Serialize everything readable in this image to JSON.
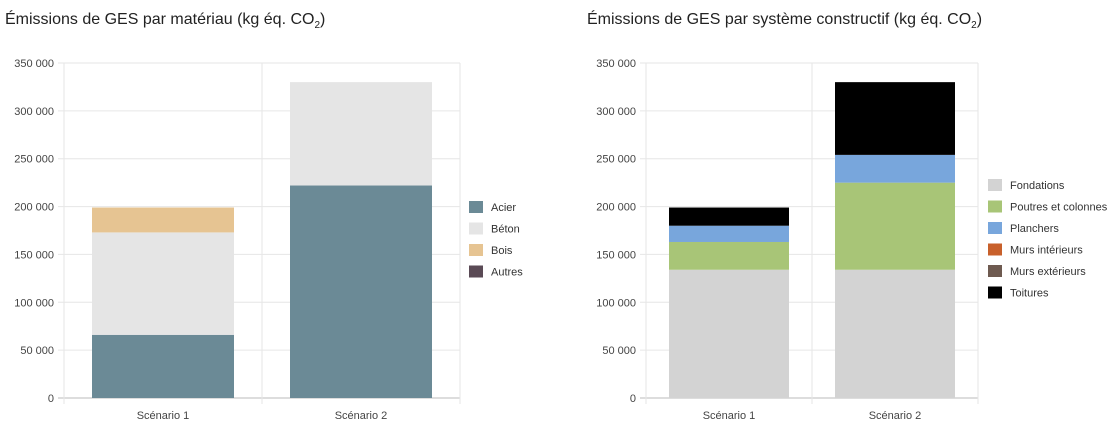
{
  "chart_data": [
    {
      "type": "bar",
      "stacked": true,
      "title": "Émissions de GES par matériau (kg éq. CO",
      "title_sub": "2",
      "title_end": ")",
      "categories": [
        "Scénario 1",
        "Scénario 2"
      ],
      "series": [
        {
          "name": "Acier",
          "color": "#6b8a96",
          "values": [
            66000,
            222000
          ]
        },
        {
          "name": "Béton",
          "color": "#e5e5e5",
          "values": [
            107000,
            108000
          ]
        },
        {
          "name": "Bois",
          "color": "#e6c492",
          "values": [
            26000,
            0
          ]
        },
        {
          "name": "Autres",
          "color": "#5a4a55",
          "values": [
            0,
            0
          ]
        }
      ],
      "ylim": [
        0,
        350000
      ],
      "yticks": [
        0,
        50000,
        100000,
        150000,
        200000,
        250000,
        300000,
        350000
      ],
      "ytick_labels": [
        "0",
        "50 000",
        "100 000",
        "150 000",
        "200 000",
        "250 000",
        "300 000",
        "350 000"
      ],
      "xlabel": "",
      "ylabel": "",
      "grid": true,
      "legend_position": "right"
    },
    {
      "type": "bar",
      "stacked": true,
      "title": "Émissions de GES par système constructif (kg éq. CO",
      "title_sub": "2",
      "title_end": ")",
      "categories": [
        "Scénario 1",
        "Scénario 2"
      ],
      "series": [
        {
          "name": "Fondations",
          "color": "#d3d3d3",
          "values": [
            134000,
            134000
          ]
        },
        {
          "name": "Poutres et colonnes",
          "color": "#a8c577",
          "values": [
            29000,
            91000
          ]
        },
        {
          "name": "Planchers",
          "color": "#78a6dc",
          "values": [
            17000,
            29000
          ]
        },
        {
          "name": "Murs intérieurs",
          "color": "#c8602b",
          "values": [
            0,
            0
          ]
        },
        {
          "name": "Murs extérieurs",
          "color": "#6e5a50",
          "values": [
            0,
            0
          ]
        },
        {
          "name": "Toitures",
          "color": "#000000",
          "values": [
            19000,
            76000
          ]
        }
      ],
      "ylim": [
        0,
        350000
      ],
      "yticks": [
        0,
        50000,
        100000,
        150000,
        200000,
        250000,
        300000,
        350000
      ],
      "ytick_labels": [
        "0",
        "50 000",
        "100 000",
        "150 000",
        "200 000",
        "250 000",
        "300 000",
        "350 000"
      ],
      "xlabel": "",
      "ylabel": "",
      "grid": true,
      "legend_position": "right"
    }
  ]
}
